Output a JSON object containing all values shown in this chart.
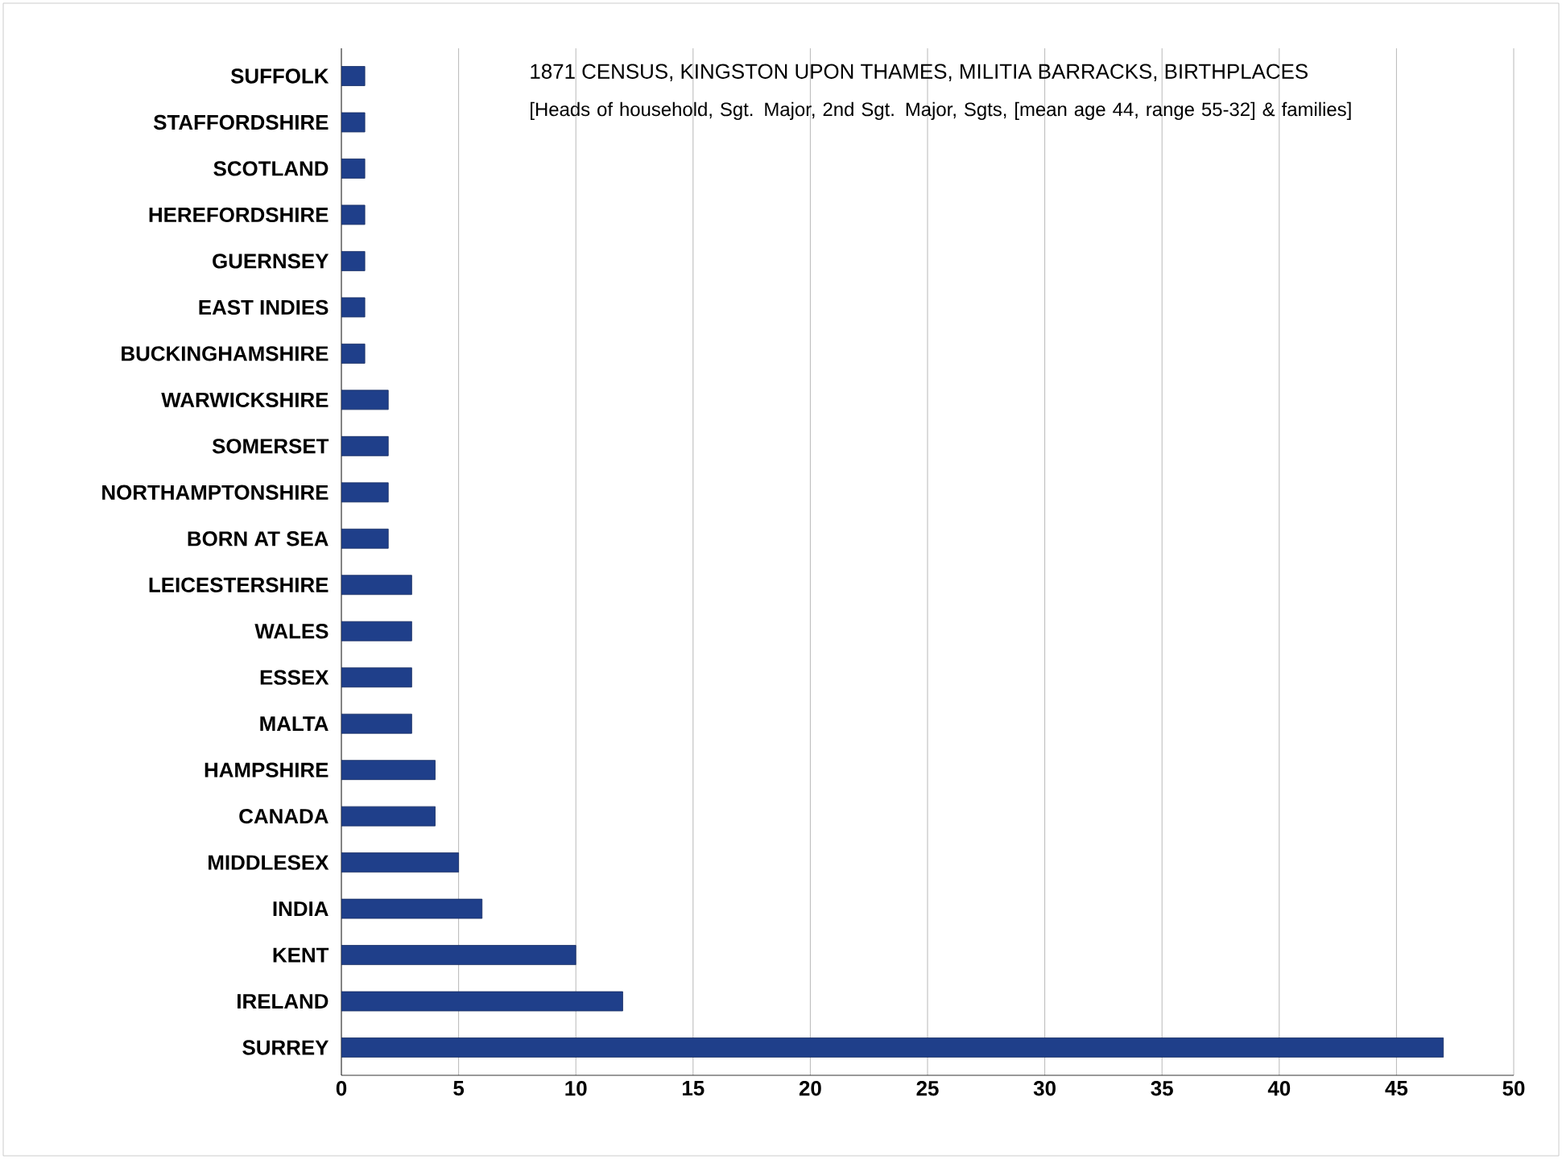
{
  "chart_data": {
    "type": "bar",
    "orientation": "horizontal",
    "title": "1871 CENSUS, KINGSTON UPON THAMES, MILITIA BARRACKS, BIRTHPLACES",
    "subtitle": "[Heads of household, Sgt. Major, 2nd Sgt. Major, Sgts, [mean age 44, range 55-32] & families]",
    "categories": [
      "SUFFOLK",
      "STAFFORDSHIRE",
      "SCOTLAND",
      "HEREFORDSHIRE",
      "GUERNSEY",
      "EAST INDIES",
      "BUCKINGHAMSHIRE",
      "WARWICKSHIRE",
      "SOMERSET",
      "NORTHAMPTONSHIRE",
      "BORN AT SEA",
      "LEICESTERSHIRE",
      "WALES",
      "ESSEX",
      "MALTA",
      "HAMPSHIRE",
      "CANADA",
      "MIDDLESEX",
      "INDIA",
      "KENT",
      "IRELAND",
      "SURREY"
    ],
    "values": [
      1,
      1,
      1,
      1,
      1,
      1,
      1,
      2,
      2,
      2,
      2,
      3,
      3,
      3,
      3,
      4,
      4,
      5,
      6,
      10,
      12,
      47
    ],
    "color": "#1f3f8a",
    "xlim": [
      0,
      50
    ],
    "xticks": [
      0,
      5,
      10,
      15,
      20,
      25,
      30,
      35,
      40,
      45,
      50
    ],
    "grid": "x"
  }
}
